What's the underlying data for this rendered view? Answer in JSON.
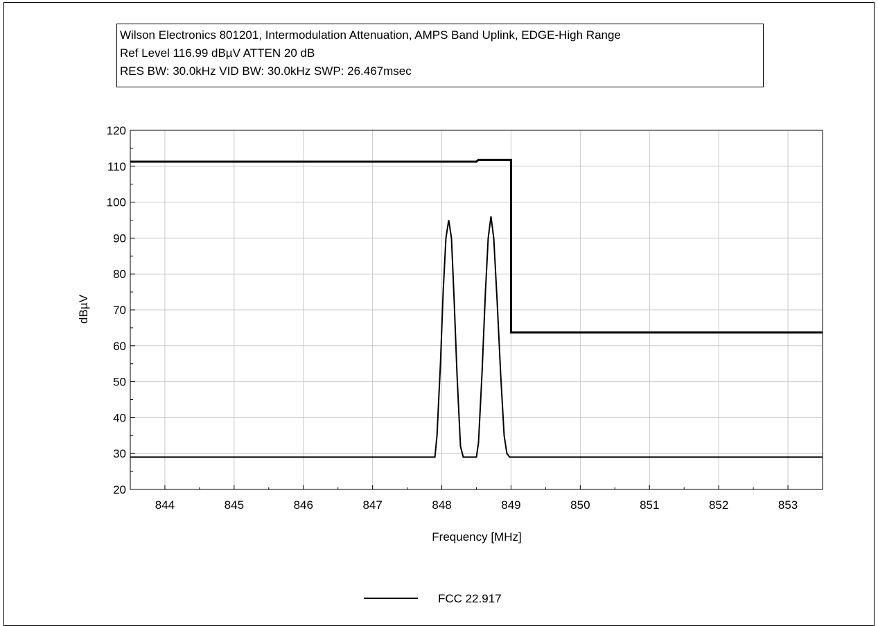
{
  "header": {
    "line1": "Wilson Electronics 801201, Intermodulation Attenuation, AMPS Band Uplink, EDGE-High Range",
    "line2": "Ref Level 116.99 dBµV    ATTEN 20 dB",
    "line3": "RES BW: 30.0kHz  VID BW: 30.0kHz  SWP: 26.467msec"
  },
  "chart_data": {
    "type": "line",
    "xlabel": "Frequency [MHz]",
    "ylabel": "dBµV",
    "xlim": [
      843.5,
      853.5
    ],
    "ylim": [
      20,
      120
    ],
    "x_ticks": [
      844,
      845,
      846,
      847,
      848,
      849,
      850,
      851,
      852,
      853
    ],
    "y_ticks": [
      20,
      30,
      40,
      50,
      60,
      70,
      80,
      90,
      100,
      110,
      120
    ],
    "grid": true,
    "legend_position": "bottom-center",
    "series": [
      {
        "name": "FCC 22.917",
        "color": "#000000",
        "x": [
          843.5,
          848.5,
          848.53,
          849.0,
          849.0,
          853.5
        ],
        "y": [
          111.3,
          111.3,
          111.8,
          111.8,
          63.7,
          63.7
        ]
      },
      {
        "name": "",
        "color": "#000000",
        "x": [
          843.5,
          847.9,
          847.93,
          847.98,
          848.02,
          848.06,
          848.1,
          848.14,
          848.18,
          848.22,
          848.27,
          848.31,
          848.34,
          848.5,
          848.53,
          848.58,
          848.63,
          848.67,
          848.71,
          848.75,
          848.8,
          848.85,
          848.9,
          848.94,
          848.98,
          853.5
        ],
        "y": [
          29,
          29,
          35,
          55,
          75,
          90,
          95,
          90,
          72,
          52,
          32,
          29,
          29,
          29,
          33,
          52,
          75,
          90,
          96,
          90,
          72,
          52,
          35,
          30,
          29,
          29
        ]
      }
    ]
  }
}
